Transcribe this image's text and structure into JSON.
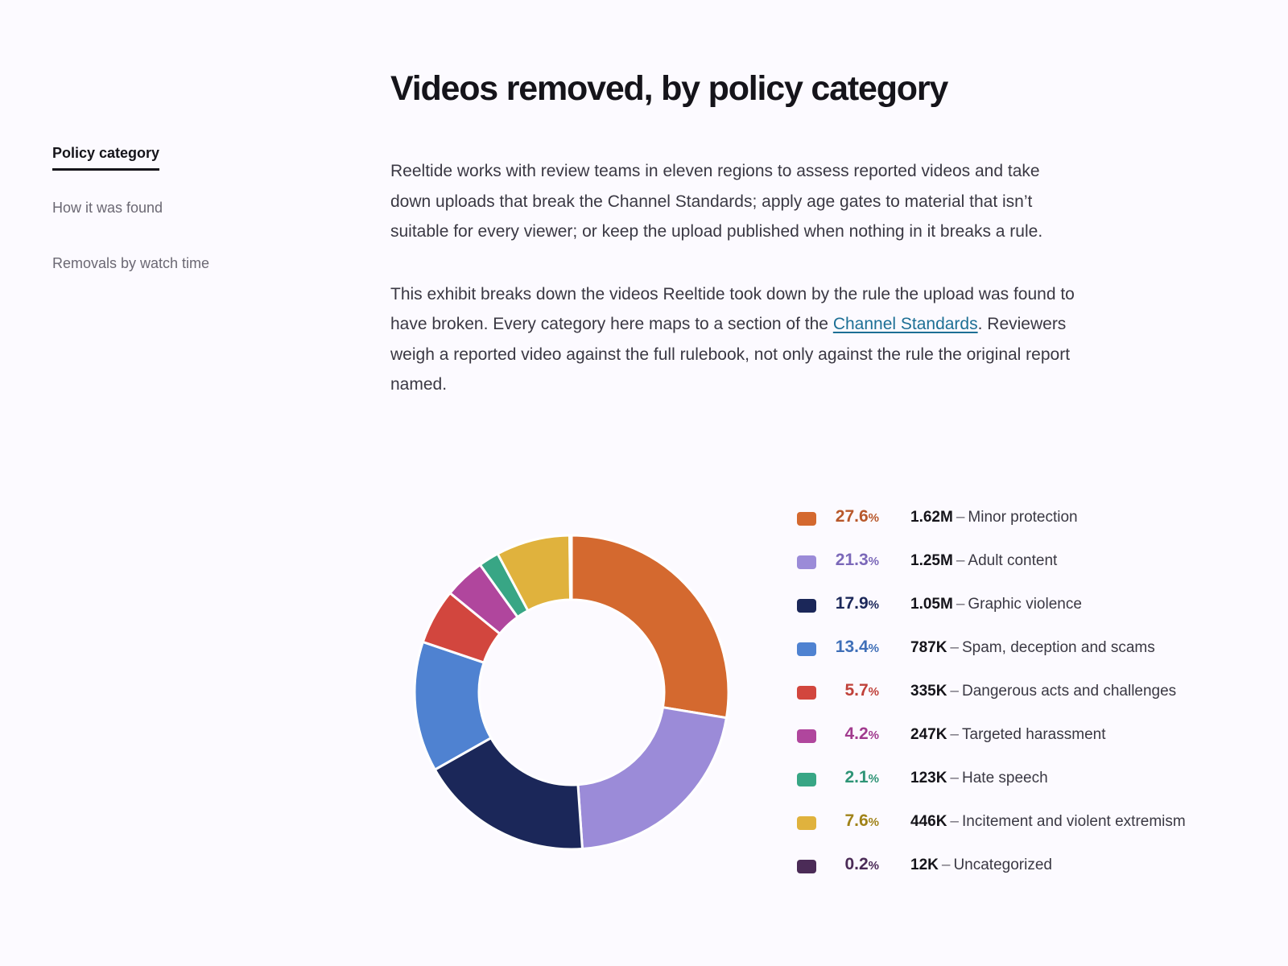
{
  "nav": {
    "items": [
      {
        "label": "Policy category",
        "active": true
      },
      {
        "label": "How it was found",
        "active": false
      },
      {
        "label": "Removals by watch time",
        "active": false
      }
    ]
  },
  "page": {
    "title": "Videos removed, by policy category",
    "para1": "Reeltide works with review teams in eleven regions to assess reported videos and take down uploads that break the Channel Standards; apply age gates to material that isn’t suitable for every viewer; or keep the upload published when nothing in it breaks a rule.",
    "para2_before": "This exhibit breaks down the videos Reeltide took down by the rule the upload was found to have broken. Every category here maps to a section of the ",
    "para2_link": "Channel Standards",
    "para2_after": ". Reviewers weigh a reported video against the full rulebook, not only against the rule the original report named."
  },
  "legend": {
    "pct_sign": "%",
    "dash": "–"
  },
  "chart_data": {
    "type": "pie",
    "donut": true,
    "categories": [
      "Minor protection",
      "Adult content",
      "Graphic violence",
      "Spam, deception and scams",
      "Dangerous acts and challenges",
      "Targeted harassment",
      "Hate speech",
      "Incitement and violent extremism",
      "Uncategorized"
    ],
    "values": [
      27.6,
      21.3,
      17.9,
      13.4,
      5.7,
      4.2,
      2.1,
      7.6,
      0.2
    ],
    "pct_labels": [
      "27.6",
      "21.3",
      "17.9",
      "13.4",
      "5.7",
      "4.2",
      "2.1",
      "7.6",
      "0.2"
    ],
    "counts": [
      "1.62M",
      "1.25M",
      "1.05M",
      "787K",
      "335K",
      "247K",
      "123K",
      "446K",
      "12K"
    ],
    "colors": [
      "#d4692f",
      "#9b8bd8",
      "#1b2759",
      "#4f82d1",
      "#d2463e",
      "#b0469d",
      "#38a685",
      "#e0b23d",
      "#4b2b57"
    ],
    "pct_colors": [
      "#b8582b",
      "#7b68b9",
      "#1b2759",
      "#3f6fb8",
      "#c0413a",
      "#a13a8e",
      "#2e9476",
      "#a08218",
      "#4b2b57"
    ]
  }
}
